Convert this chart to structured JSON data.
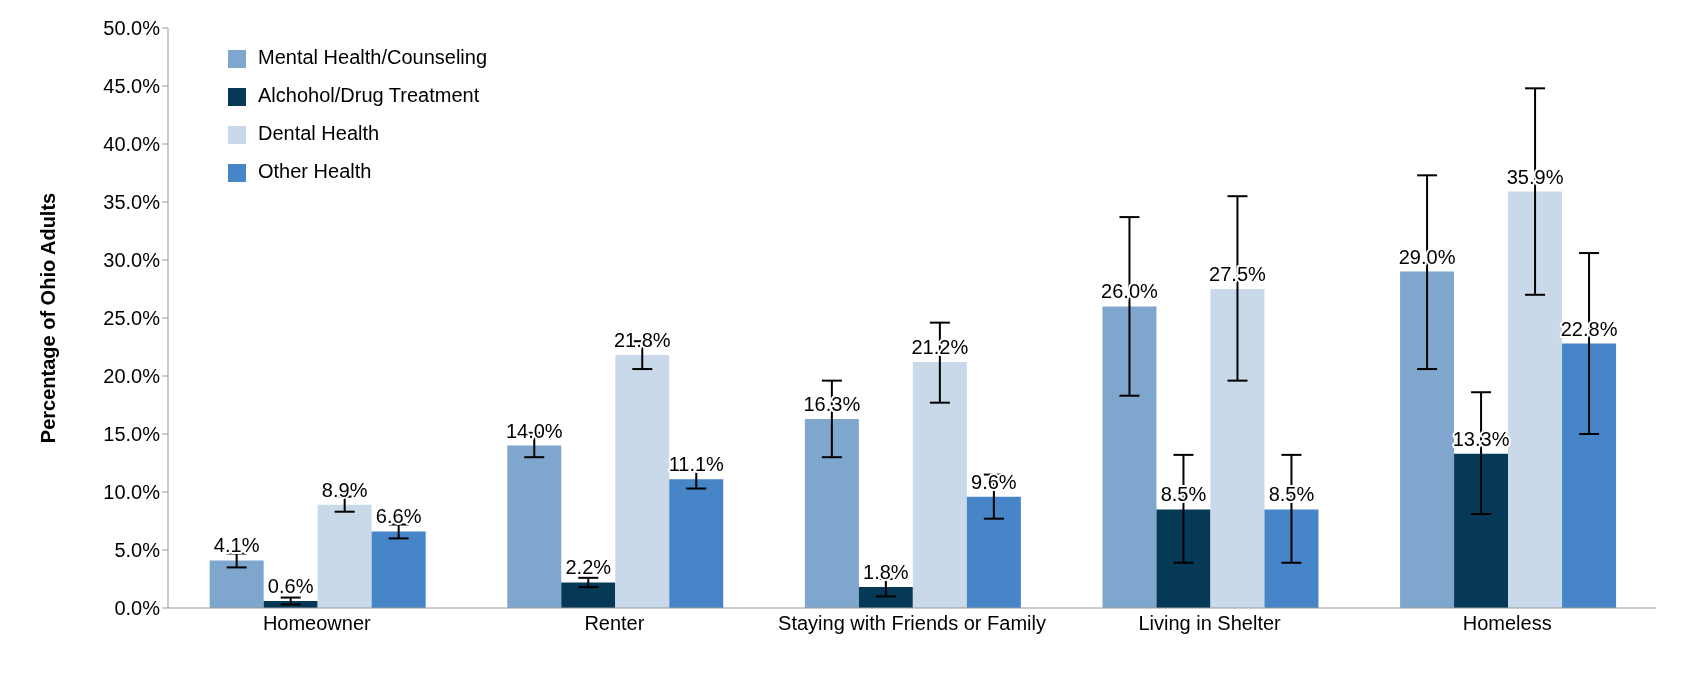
{
  "chart_data": {
    "type": "bar",
    "ylabel": "Percentage of Ohio Adults",
    "categories": [
      "Homeowner",
      "Renter",
      "Staying with Friends or Family",
      "Living in Shelter",
      "Homeless"
    ],
    "series": [
      {
        "name": "Mental Health/Counseling",
        "color": "#7fa6cc",
        "values": [
          4.1,
          14.0,
          16.3,
          26.0,
          29.0
        ],
        "value_labels": [
          "4.1%",
          "14.0%",
          "16.3%",
          "26.0%",
          "29.0%"
        ],
        "errors": [
          [
            3.5,
            4.7
          ],
          [
            13.0,
            15.1
          ],
          [
            13.0,
            19.6
          ],
          [
            18.3,
            33.7
          ],
          [
            20.6,
            37.3
          ]
        ]
      },
      {
        "name": "Alchohol/Drug Treatment",
        "color": "#063956",
        "values": [
          0.6,
          2.2,
          1.8,
          8.5,
          13.3
        ],
        "value_labels": [
          "0.6%",
          "2.2%",
          "1.8%",
          "8.5%",
          "13.3%"
        ],
        "errors": [
          [
            0.3,
            0.9
          ],
          [
            1.8,
            2.6
          ],
          [
            1.0,
            2.5
          ],
          [
            3.9,
            13.2
          ],
          [
            8.1,
            18.6
          ]
        ]
      },
      {
        "name": "Dental Health",
        "color": "#c9d9ea",
        "values": [
          8.9,
          21.8,
          21.2,
          27.5,
          35.9
        ],
        "value_labels": [
          "8.9%",
          "21.8%",
          "21.2%",
          "27.5%",
          "35.9%"
        ],
        "errors": [
          [
            8.3,
            9.6
          ],
          [
            20.6,
            23.0
          ],
          [
            17.7,
            24.6
          ],
          [
            19.6,
            35.5
          ],
          [
            27.0,
            44.8
          ]
        ]
      },
      {
        "name": "Other Health",
        "color": "#4585c8",
        "values": [
          6.6,
          11.1,
          9.6,
          8.5,
          22.8
        ],
        "value_labels": [
          "6.6%",
          "11.1%",
          "9.6%",
          "8.5%",
          "22.8%"
        ],
        "errors": [
          [
            6.0,
            7.2
          ],
          [
            10.3,
            12.0
          ],
          [
            7.7,
            11.5
          ],
          [
            3.9,
            13.2
          ],
          [
            15.0,
            30.6
          ]
        ]
      }
    ],
    "ylim": [
      0,
      50
    ],
    "yticks": [
      {
        "value": 0,
        "label": "0.0%"
      },
      {
        "value": 5,
        "label": "5.0%"
      },
      {
        "value": 10,
        "label": "10.0%"
      },
      {
        "value": 15,
        "label": "15.0%"
      },
      {
        "value": 20,
        "label": "20.0%"
      },
      {
        "value": 25,
        "label": "25.0%"
      },
      {
        "value": 30,
        "label": "30.0%"
      },
      {
        "value": 35,
        "label": "35.0%"
      },
      {
        "value": 40,
        "label": "40.0%"
      },
      {
        "value": 45,
        "label": "45.0%"
      },
      {
        "value": 50,
        "label": "50.0%"
      }
    ],
    "grid": false,
    "legend": "top left"
  }
}
